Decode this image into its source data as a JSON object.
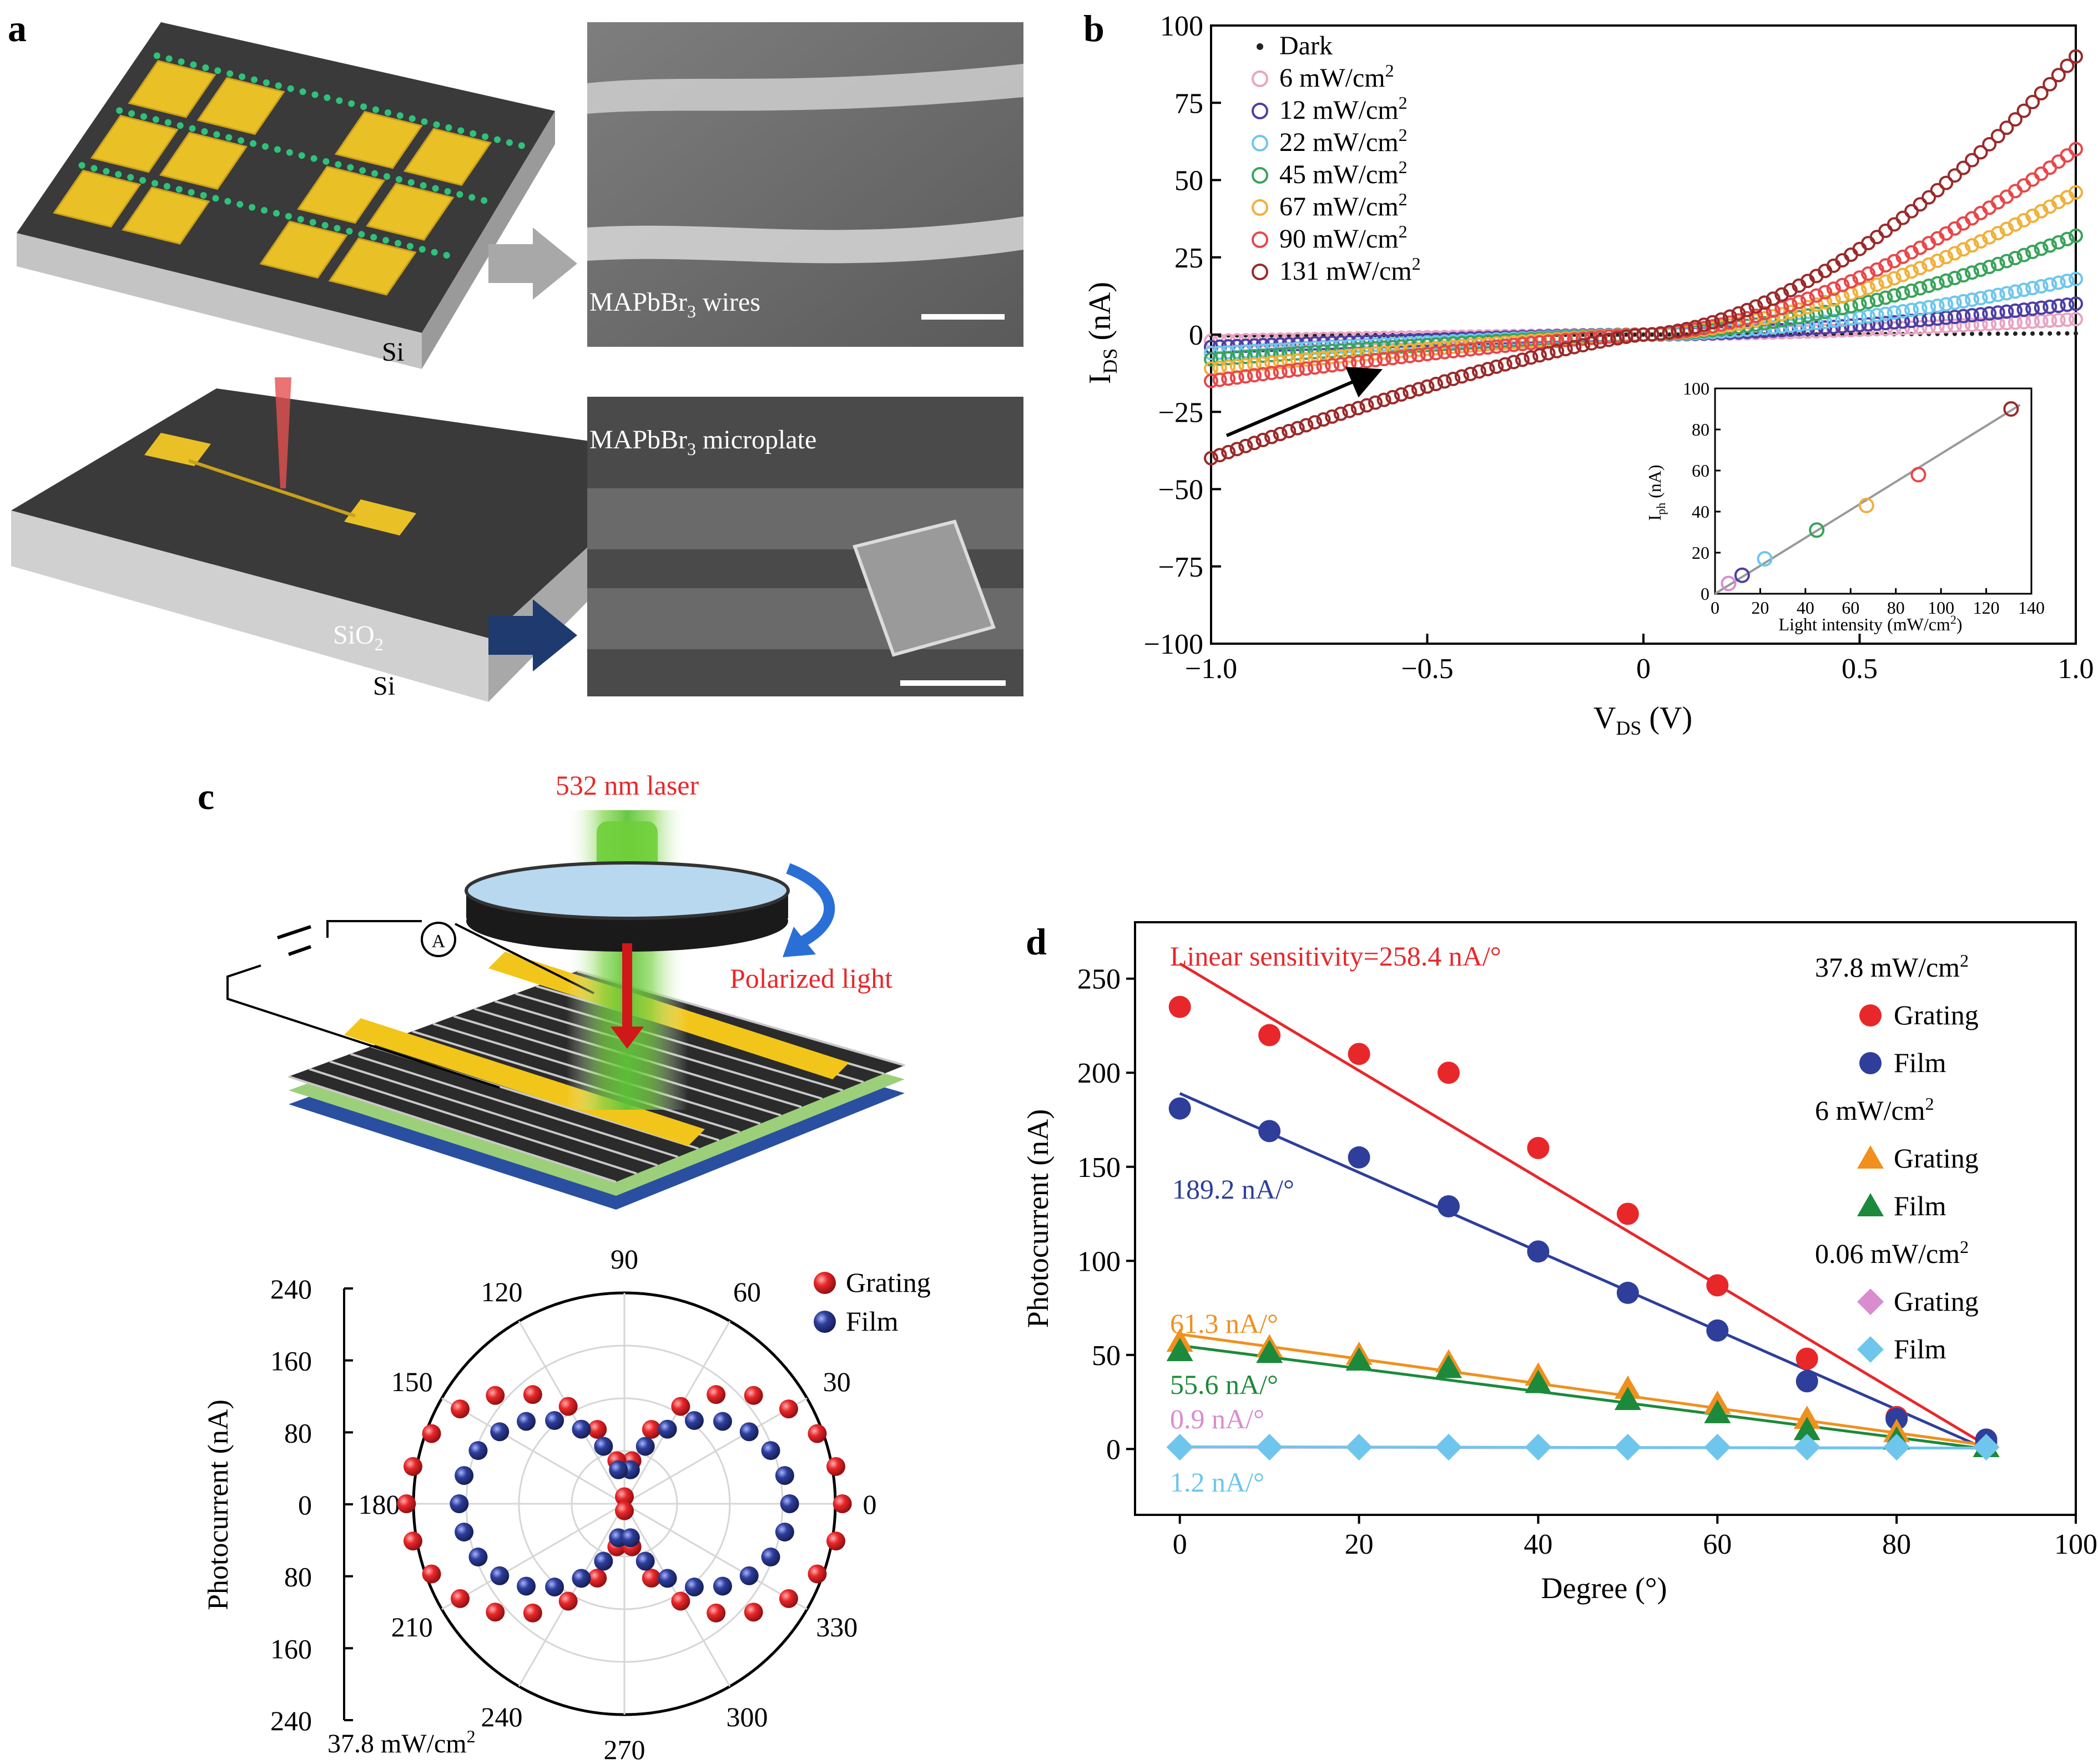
{
  "panels": {
    "a": {
      "letter": "a",
      "top_substrate_label": "Si",
      "sem_top_label": "MAPbBr",
      "sem_top_sub": "3",
      "sem_top_suffix": " wires",
      "bottom_substrate_label_1": "SiO",
      "bottom_substrate_sub_1": "2",
      "bottom_substrate_label_2": "Si",
      "sem_bottom_label": "MAPbBr",
      "sem_bottom_sub": "3",
      "sem_bottom_suffix": " microplate"
    },
    "b": {
      "letter": "b",
      "ylabel_main": "I",
      "ylabel_sub": "DS",
      "ylabel_unit": " (nA)",
      "xlabel_main": "V",
      "xlabel_sub": "DS",
      "xlabel_unit": " (V)",
      "inset_ylabel_main": "I",
      "inset_ylabel_sub": "ph",
      "inset_ylabel_unit": " (nA)",
      "inset_xlabel": "Light intensity (mW/cm",
      "inset_xlabel_sup": "2",
      "inset_xlabel_end": ")"
    },
    "c": {
      "letter": "c",
      "laser_label": "532 nm laser",
      "polarized_label": "Polarized light",
      "ammeter_label": "A",
      "ylabel": "Photocurrent (nA)",
      "intensity_label": "37.8 mW/cm",
      "intensity_sup": "2"
    },
    "d": {
      "letter": "d",
      "annotation_red": "Linear sensitivity=258.4 nA/°",
      "annotation_blue": "189.2 nA/°",
      "annotation_orange": "61.3 nA/°",
      "annotation_green": "55.6 nA/°",
      "annotation_pink": "0.9 nA/°",
      "annotation_lightblue": "1.2 nA/°"
    }
  },
  "colors": {
    "red": "#e8272a",
    "blue": "#2e3e9a",
    "orange": "#f0901e",
    "green": "#1c8a3a",
    "pink": "#d98ccf",
    "lightblue": "#6ec6ec",
    "dark_red": "#9a2a2a",
    "gold": "#f2c51a",
    "laser_green": "#6fcf3a"
  },
  "chart_data": [
    {
      "type": "line",
      "panel": "b",
      "xlabel": "V_DS (V)",
      "ylabel": "I_DS (nA)",
      "xlim": [
        -1.0,
        1.0
      ],
      "ylim": [
        -100,
        100
      ],
      "x_ticks": [
        -1.0,
        -0.5,
        0,
        0.5,
        1.0
      ],
      "x_tick_labels": [
        "−1.0",
        "−0.5",
        "0",
        "0.5",
        "1.0"
      ],
      "y_ticks": [
        -100,
        -75,
        -50,
        -25,
        0,
        25,
        50,
        75,
        100
      ],
      "y_tick_labels": [
        "−100",
        "−75",
        "−50",
        "−25",
        "0",
        "25",
        "50",
        "75",
        "100"
      ],
      "legend_position": "top-left",
      "series": [
        {
          "name": "Dark",
          "color": "#222222",
          "marker": "dot",
          "i_at_1V": 0.4,
          "i_at_m1V": -0.3
        },
        {
          "name": "6 mW/cm²",
          "legend_base": "6 mW/cm",
          "color": "#e9a3c3",
          "i_at_1V": 5,
          "i_at_m1V": -2
        },
        {
          "name": "12 mW/cm²",
          "legend_base": "12 mW/cm",
          "color": "#4b3fa3",
          "i_at_1V": 10,
          "i_at_m1V": -4
        },
        {
          "name": "22 mW/cm²",
          "legend_base": "22 mW/cm",
          "color": "#6ec6ec",
          "i_at_1V": 18,
          "i_at_m1V": -6
        },
        {
          "name": "45 mW/cm²",
          "legend_base": "45 mW/cm",
          "color": "#3aa35a",
          "i_at_1V": 32,
          "i_at_m1V": -8
        },
        {
          "name": "67 mW/cm²",
          "legend_base": "67 mW/cm",
          "color": "#f0b03a",
          "i_at_1V": 46,
          "i_at_m1V": -11
        },
        {
          "name": "90 mW/cm²",
          "legend_base": "90 mW/cm",
          "color": "#e8474a",
          "i_at_1V": 60,
          "i_at_m1V": -15
        },
        {
          "name": "131 mW/cm²",
          "legend_base": "131 mW/cm",
          "color": "#9a2a2a",
          "i_at_1V": 90,
          "i_at_m1V": -40
        }
      ],
      "inset": {
        "xlabel": "Light intensity (mW/cm²)",
        "ylabel": "I_ph (nA)",
        "xlim": [
          0,
          140
        ],
        "ylim": [
          0,
          100
        ],
        "x_ticks": [
          0,
          20,
          40,
          60,
          80,
          100,
          120,
          140
        ],
        "y_ticks": [
          0,
          20,
          40,
          60,
          80,
          100
        ],
        "points": [
          {
            "x": 6,
            "y": 5,
            "color": "#d98ccf"
          },
          {
            "x": 12,
            "y": 9,
            "color": "#4b3fa3"
          },
          {
            "x": 22,
            "y": 17,
            "color": "#6ec6ec"
          },
          {
            "x": 45,
            "y": 31,
            "color": "#3aa35a"
          },
          {
            "x": 67,
            "y": 43,
            "color": "#f0b03a"
          },
          {
            "x": 90,
            "y": 58,
            "color": "#e8474a"
          },
          {
            "x": 131,
            "y": 90,
            "color": "#9a2a2a"
          }
        ]
      }
    },
    {
      "type": "scatter",
      "panel": "c",
      "subtype": "polar",
      "angle_ticks": [
        0,
        30,
        60,
        90,
        120,
        150,
        180,
        210,
        240,
        270,
        300,
        330
      ],
      "radial_axis_labels": [
        "240",
        "160",
        "80",
        "0",
        "80",
        "160",
        "240"
      ],
      "rmax": 240,
      "legend_position": "top-right",
      "series": [
        {
          "name": "Grating",
          "color": "#e8272a",
          "amplitude": 240,
          "points_deg": [
            0,
            10,
            20,
            30,
            40,
            50,
            60,
            70,
            80,
            90,
            100,
            110,
            120,
            130,
            140,
            150,
            160,
            170,
            180,
            190,
            200,
            210,
            220,
            230,
            240,
            250,
            260,
            270,
            280,
            290,
            300,
            310,
            320,
            330,
            340,
            350
          ]
        },
        {
          "name": "Film",
          "color": "#2e3e9a",
          "amplitude": 180,
          "points_deg": [
            0,
            10,
            20,
            30,
            40,
            50,
            60,
            70,
            80,
            100,
            110,
            120,
            130,
            140,
            150,
            160,
            170,
            180,
            190,
            200,
            210,
            220,
            230,
            240,
            250,
            260,
            280,
            290,
            300,
            310,
            320,
            330,
            340,
            350
          ]
        }
      ]
    },
    {
      "type": "scatter",
      "panel": "d",
      "xlabel": "Degree (°)",
      "ylabel": "Photocurrent (nA)",
      "xlim": [
        -5,
        100
      ],
      "ylim": [
        -35,
        280
      ],
      "x_ticks": [
        0,
        20,
        40,
        60,
        80,
        100
      ],
      "y_ticks": [
        0,
        50,
        100,
        150,
        200,
        250
      ],
      "legend_position": "top-right",
      "legend_groups": [
        {
          "title": "37.8 mW/cm",
          "title_sup": "2",
          "items": [
            "Grating",
            "Film"
          ]
        },
        {
          "title": "6 mW/cm",
          "title_sup": "2",
          "items": [
            "Grating",
            "Film"
          ]
        },
        {
          "title": "0.06 mW/cm",
          "title_sup": "2",
          "items": [
            "Grating",
            "Film"
          ]
        }
      ],
      "x": [
        0,
        10,
        20,
        30,
        40,
        50,
        60,
        70,
        80,
        90
      ],
      "series": [
        {
          "name": "Grating",
          "group": "37.8 mW/cm²",
          "marker": "circle",
          "color": "#e8272a",
          "values": [
            235,
            220,
            210,
            200,
            160,
            125,
            87,
            48,
            17,
            3
          ],
          "fit": [
            258,
            2
          ]
        },
        {
          "name": "Film",
          "group": "37.8 mW/cm²",
          "marker": "circle",
          "color": "#2e3e9a",
          "values": [
            181,
            169,
            155,
            129,
            105,
            83,
            63,
            36,
            16,
            5
          ],
          "fit": [
            189,
            0
          ]
        },
        {
          "name": "Grating",
          "group": "6 mW/cm²",
          "marker": "triangle",
          "color": "#f0901e",
          "values": [
            57,
            54,
            50,
            46,
            39,
            32,
            24,
            16,
            9,
            1
          ],
          "fit": [
            61,
            2
          ]
        },
        {
          "name": "Film",
          "group": "6 mW/cm²",
          "marker": "triangle",
          "color": "#1c8a3a",
          "values": [
            52,
            51,
            47,
            43,
            35,
            26,
            19,
            10,
            5,
            1
          ],
          "fit": [
            55,
            0
          ]
        },
        {
          "name": "Grating",
          "group": "0.06 mW/cm²",
          "marker": "diamond",
          "color": "#d98ccf",
          "values": [
            1,
            1,
            1,
            1,
            1,
            1,
            1,
            1,
            1,
            1
          ],
          "fit": [
            1,
            0.5
          ]
        },
        {
          "name": "Film",
          "group": "0.06 mW/cm²",
          "marker": "diamond",
          "color": "#6ec6ec",
          "values": [
            1,
            1,
            1,
            1,
            1,
            1,
            1,
            1,
            1,
            1
          ],
          "fit": [
            1.2,
            0.5
          ]
        }
      ]
    }
  ]
}
